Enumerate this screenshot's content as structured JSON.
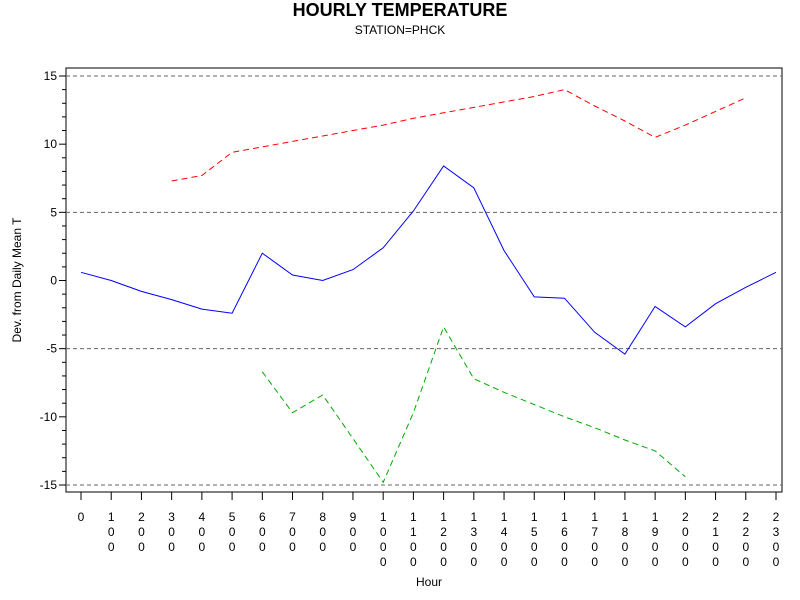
{
  "chart_data": {
    "type": "line",
    "title": "HOURLY TEMPERATURE",
    "subtitle": "STATION=PHCK",
    "xlabel": "Hour",
    "ylabel": "Dev. from Daily Mean T",
    "xlim": [
      0,
      2300
    ],
    "ylim": [
      -15,
      15
    ],
    "x": [
      0,
      100,
      200,
      300,
      400,
      500,
      600,
      700,
      800,
      900,
      1000,
      1100,
      1200,
      1300,
      1400,
      1500,
      1600,
      1700,
      1800,
      1900,
      2000,
      2100,
      2200,
      2300
    ],
    "x_tick_labels": [
      "0",
      "100",
      "200",
      "300",
      "400",
      "500",
      "600",
      "700",
      "800",
      "900",
      "1000",
      "1100",
      "1200",
      "1300",
      "1400",
      "1500",
      "1600",
      "1700",
      "1800",
      "1900",
      "2000",
      "2100",
      "2200",
      "2300"
    ],
    "y_ticks": [
      -15,
      -10,
      -5,
      0,
      5,
      10,
      15
    ],
    "y_tick_labels": [
      "-15",
      "-10",
      "-5",
      "0",
      "5",
      "10",
      "15"
    ],
    "reference_lines": [
      -15,
      -5,
      5,
      15
    ],
    "series": [
      {
        "color": "#0000ff",
        "style": "solid",
        "values": [
          0.6,
          0.0,
          -0.8,
          -1.4,
          -2.1,
          -2.4,
          2.0,
          0.4,
          0.0,
          0.8,
          2.4,
          5.1,
          8.4,
          6.8,
          2.2,
          -1.2,
          -1.3,
          -3.8,
          -5.4,
          -1.9,
          -3.4,
          -1.7,
          -0.5,
          0.6
        ]
      },
      {
        "color": "#ff0000",
        "style": "dashed",
        "values": [
          null,
          null,
          null,
          7.3,
          7.7,
          9.4,
          9.8,
          10.2,
          10.6,
          11.0,
          11.4,
          11.9,
          12.3,
          12.7,
          13.1,
          13.5,
          14.0,
          12.8,
          11.7,
          10.5,
          11.4,
          12.4,
          13.4,
          null
        ]
      },
      {
        "color": "#00aa00",
        "style": "dashed",
        "values": [
          null,
          null,
          null,
          null,
          null,
          null,
          -6.7,
          -9.7,
          -8.4,
          -11.6,
          -14.8,
          -9.7,
          -3.4,
          -7.2,
          -8.2,
          -9.1,
          -10.0,
          -10.8,
          -11.7,
          -12.5,
          -14.4,
          null,
          null,
          null
        ]
      }
    ]
  }
}
